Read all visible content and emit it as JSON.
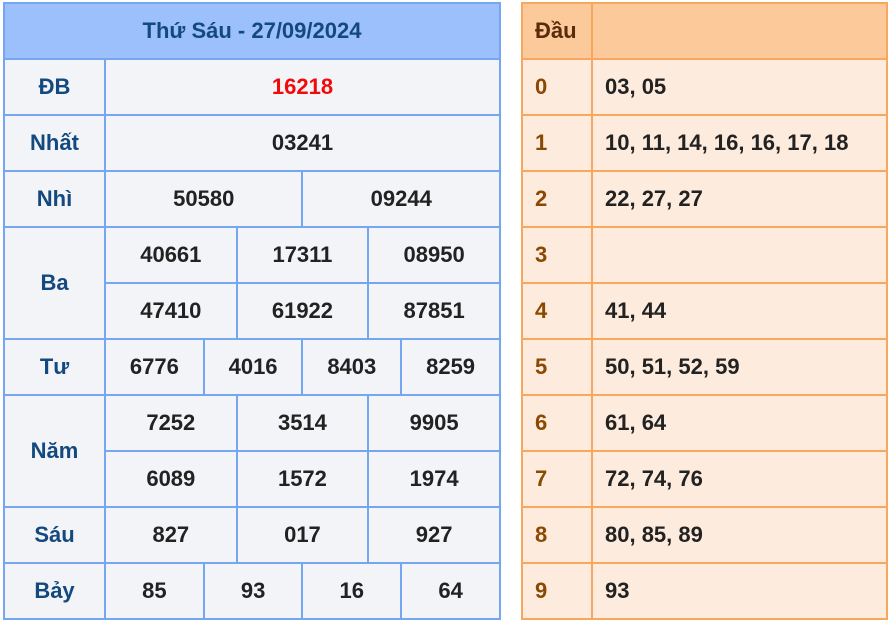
{
  "results": {
    "title": "Thứ Sáu - 27/09/2024",
    "labels": {
      "db": "ĐB",
      "nhat": "Nhất",
      "nhi": "Nhì",
      "ba": "Ba",
      "tu": "Tư",
      "nam": "Năm",
      "sau": "Sáu",
      "bay": "Bảy"
    },
    "db": "16218",
    "nhat": "03241",
    "nhi": [
      "50580",
      "09244"
    ],
    "ba": [
      "40661",
      "17311",
      "08950",
      "47410",
      "61922",
      "87851"
    ],
    "tu": [
      "6776",
      "4016",
      "8403",
      "8259"
    ],
    "nam": [
      "7252",
      "3514",
      "9905",
      "6089",
      "1572",
      "1974"
    ],
    "sau": [
      "827",
      "017",
      "927"
    ],
    "bay": [
      "85",
      "93",
      "16",
      "64"
    ]
  },
  "loto": {
    "header": "Đầu",
    "rows": [
      {
        "head": "0",
        "tails": "03, 05"
      },
      {
        "head": "1",
        "tails": "10, 11, 14, 16, 16, 17, 18"
      },
      {
        "head": "2",
        "tails": "22, 27, 27"
      },
      {
        "head": "3",
        "tails": ""
      },
      {
        "head": "4",
        "tails": "41, 44"
      },
      {
        "head": "5",
        "tails": "50, 51, 52, 59"
      },
      {
        "head": "6",
        "tails": "61, 64"
      },
      {
        "head": "7",
        "tails": "72, 74, 76"
      },
      {
        "head": "8",
        "tails": "80, 85, 89"
      },
      {
        "head": "9",
        "tails": "93"
      }
    ]
  },
  "colors": {
    "special_prize": "#f20a0a",
    "result_header": "#9bc0fb",
    "loto_header": "#fbc99a"
  }
}
